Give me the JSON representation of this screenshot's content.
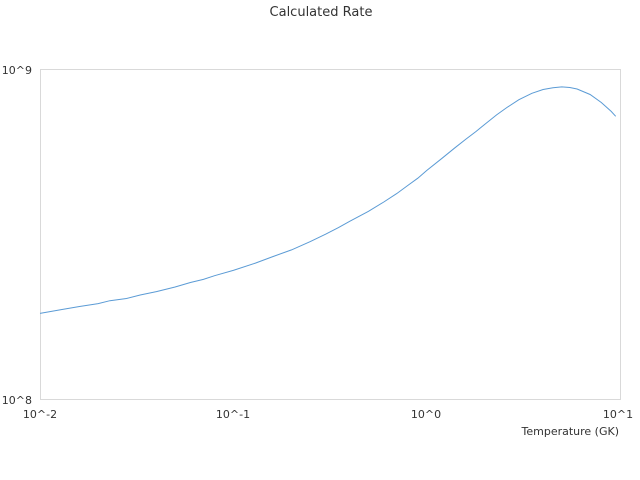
{
  "chart_data": {
    "type": "line",
    "title": "Calculated Rate",
    "xlabel": "Temperature (GK)",
    "ylabel": "",
    "x_scale": "log",
    "y_scale": "log",
    "xlim": [
      0.01,
      10
    ],
    "ylim": [
      100000000,
      1000000000
    ],
    "x_tick_labels": [
      "10^-2",
      "10^-1",
      "10^0",
      "10^1"
    ],
    "y_tick_labels": [
      "10^8",
      "10^9"
    ],
    "grid": false,
    "legend": "none",
    "series": [
      {
        "color": "#5b9bd5",
        "x": [
          0.01,
          0.013,
          0.016,
          0.02,
          0.023,
          0.028,
          0.033,
          0.04,
          0.05,
          0.06,
          0.07,
          0.08,
          0.1,
          0.13,
          0.16,
          0.2,
          0.25,
          0.3,
          0.35,
          0.4,
          0.5,
          0.6,
          0.7,
          0.8,
          0.9,
          1.0,
          1.2,
          1.4,
          1.6,
          1.8,
          2.0,
          2.3,
          2.6,
          3.0,
          3.5,
          4.0,
          4.5,
          5.0,
          5.5,
          6.0,
          7.0,
          8.0,
          9.0,
          9.5
        ],
        "y": [
          183000000,
          188000000,
          192000000,
          196000000,
          200000000,
          203000000,
          208000000,
          213000000,
          220000000,
          227000000,
          232000000,
          238000000,
          247000000,
          260000000,
          272000000,
          285000000,
          302000000,
          318000000,
          333000000,
          348000000,
          373000000,
          398000000,
          422000000,
          447000000,
          470000000,
          496000000,
          540000000,
          581000000,
          618000000,
          651000000,
          685000000,
          731000000,
          770000000,
          813000000,
          850000000,
          873000000,
          884000000,
          889000000,
          885000000,
          876000000,
          843000000,
          797000000,
          749000000,
          724000000
        ]
      }
    ]
  }
}
